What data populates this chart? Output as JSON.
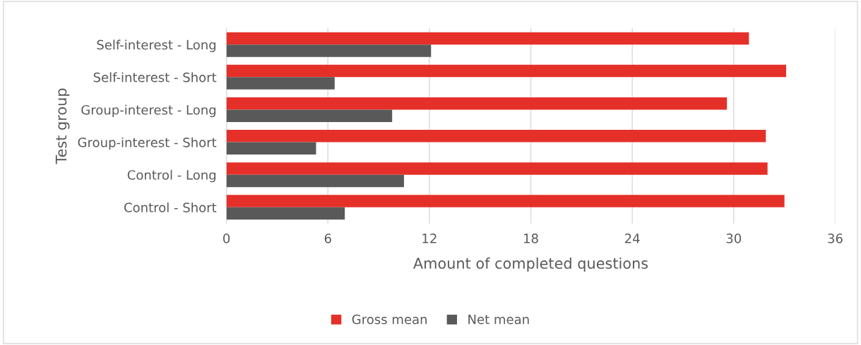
{
  "chart_data": {
    "type": "bar",
    "orientation": "horizontal",
    "xlabel": "Amount of completed questions",
    "ylabel": "Test group",
    "categories": [
      "Self-interest - Long",
      "Self-interest - Short",
      "Group-interest - Long",
      "Group-interest - Short",
      "Control - Long",
      "Control - Short"
    ],
    "series": [
      {
        "name": "Gross mean",
        "color": "#e5302a",
        "values": [
          30.9,
          33.1,
          29.6,
          31.9,
          32.0,
          33.0
        ]
      },
      {
        "name": "Net mean",
        "color": "#595959",
        "values": [
          12.1,
          6.4,
          9.8,
          5.3,
          10.5,
          7.0
        ]
      }
    ],
    "xlim": [
      0,
      36
    ],
    "xticks": [
      0,
      6,
      12,
      18,
      24,
      30,
      36
    ],
    "grid": "x",
    "legend": "bottom"
  }
}
